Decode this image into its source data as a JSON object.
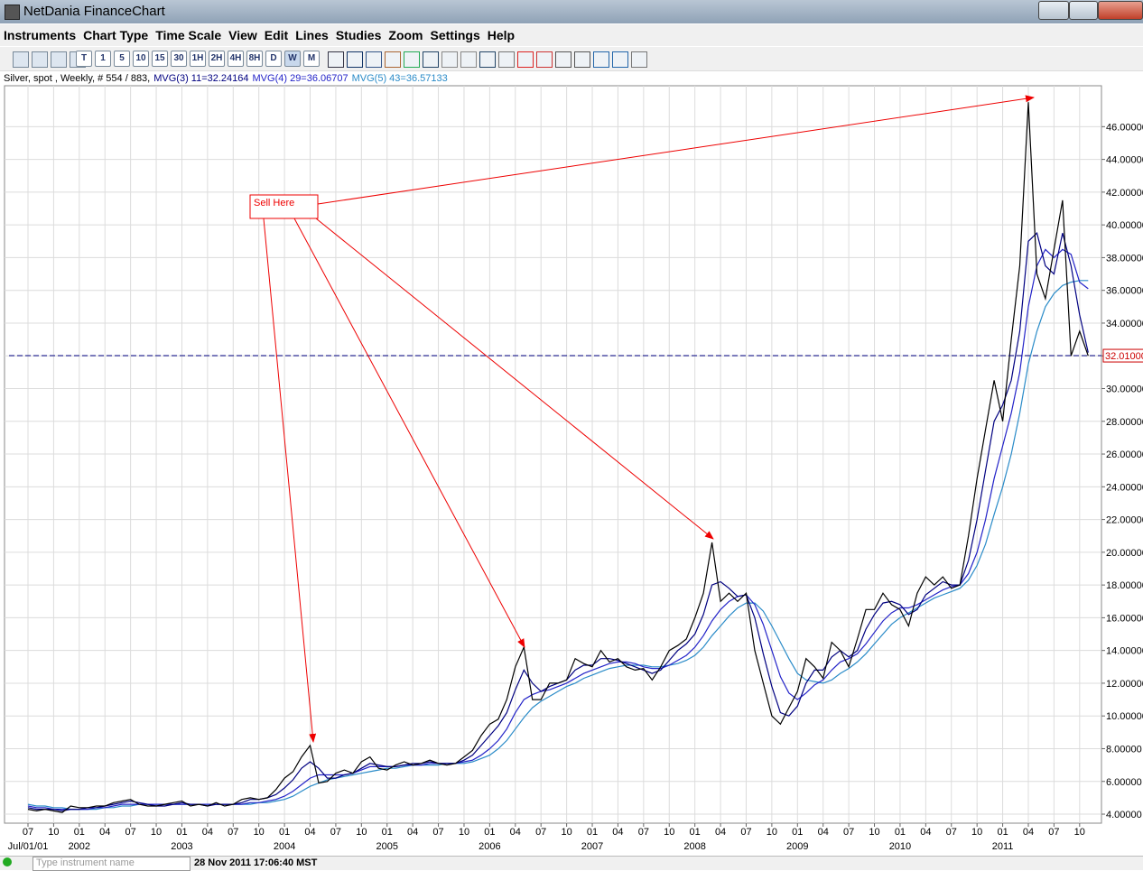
{
  "window": {
    "title": "NetDania FinanceChart"
  },
  "menu": [
    "Instruments",
    "Chart Type",
    "Time Scale",
    "View",
    "Edit",
    "Lines",
    "Studies",
    "Zoom",
    "Settings",
    "Help"
  ],
  "toolbar": {
    "timeframes": [
      "T",
      "1",
      "5",
      "10",
      "15",
      "30",
      "1H",
      "2H",
      "4H",
      "8H",
      "D",
      "W",
      "M"
    ]
  },
  "status": {
    "search_placeholder": "Type instrument name",
    "datetime": "28 Nov 2011 17:06:40 MST"
  },
  "chart_data": {
    "type": "line",
    "x": [
      "2001-07",
      "2001-08",
      "2001-09",
      "2001-10",
      "2001-11",
      "2001-12",
      "2002-01",
      "2002-02",
      "2002-03",
      "2002-04",
      "2002-05",
      "2002-06",
      "2002-07",
      "2002-08",
      "2002-09",
      "2002-10",
      "2002-11",
      "2002-12",
      "2003-01",
      "2003-02",
      "2003-03",
      "2003-04",
      "2003-05",
      "2003-06",
      "2003-07",
      "2003-08",
      "2003-09",
      "2003-10",
      "2003-11",
      "2003-12",
      "2004-01",
      "2004-02",
      "2004-03",
      "2004-04",
      "2004-05",
      "2004-06",
      "2004-07",
      "2004-08",
      "2004-09",
      "2004-10",
      "2004-11",
      "2004-12",
      "2005-01",
      "2005-02",
      "2005-03",
      "2005-04",
      "2005-05",
      "2005-06",
      "2005-07",
      "2005-08",
      "2005-09",
      "2005-10",
      "2005-11",
      "2005-12",
      "2006-01",
      "2006-02",
      "2006-03",
      "2006-04",
      "2006-05",
      "2006-06",
      "2006-07",
      "2006-08",
      "2006-09",
      "2006-10",
      "2006-11",
      "2006-12",
      "2007-01",
      "2007-02",
      "2007-03",
      "2007-04",
      "2007-05",
      "2007-06",
      "2007-07",
      "2007-08",
      "2007-09",
      "2007-10",
      "2007-11",
      "2007-12",
      "2008-01",
      "2008-02",
      "2008-03",
      "2008-04",
      "2008-05",
      "2008-06",
      "2008-07",
      "2008-08",
      "2008-09",
      "2008-10",
      "2008-11",
      "2008-12",
      "2009-01",
      "2009-02",
      "2009-03",
      "2009-04",
      "2009-05",
      "2009-06",
      "2009-07",
      "2009-08",
      "2009-09",
      "2009-10",
      "2009-11",
      "2009-12",
      "2010-01",
      "2010-02",
      "2010-03",
      "2010-04",
      "2010-05",
      "2010-06",
      "2010-07",
      "2010-08",
      "2010-09",
      "2010-10",
      "2010-11",
      "2010-12",
      "2011-01",
      "2011-02",
      "2011-03",
      "2011-04",
      "2011-05",
      "2011-06",
      "2011-07",
      "2011-08",
      "2011-09",
      "2011-10",
      "2011-11"
    ],
    "series": [
      {
        "name": "Silver, spot , Weekly, # 554 / 883,",
        "color": "#000000",
        "values": [
          4.3,
          4.2,
          4.3,
          4.2,
          4.1,
          4.5,
          4.4,
          4.4,
          4.5,
          4.5,
          4.7,
          4.8,
          4.9,
          4.6,
          4.5,
          4.5,
          4.6,
          4.7,
          4.8,
          4.5,
          4.6,
          4.5,
          4.7,
          4.5,
          4.6,
          4.9,
          5.0,
          4.9,
          5.0,
          5.5,
          6.2,
          6.6,
          7.5,
          8.2,
          5.9,
          6.0,
          6.5,
          6.7,
          6.5,
          7.2,
          7.5,
          6.8,
          6.7,
          7.0,
          7.2,
          7.0,
          7.1,
          7.3,
          7.1,
          7.0,
          7.1,
          7.5,
          7.9,
          8.8,
          9.5,
          9.8,
          11.0,
          13.0,
          14.2,
          11.0,
          11.0,
          12.0,
          12.0,
          12.2,
          13.5,
          13.2,
          13.0,
          14.0,
          13.3,
          13.5,
          13.0,
          12.8,
          12.9,
          12.2,
          13.0,
          14.0,
          14.3,
          14.7,
          16.0,
          17.5,
          20.6,
          17.0,
          17.5,
          17.0,
          17.5,
          14.0,
          12.0,
          10.0,
          9.5,
          10.5,
          11.5,
          13.5,
          13.0,
          12.3,
          14.5,
          14.0,
          13.0,
          14.7,
          16.5,
          16.5,
          17.5,
          16.8,
          16.5,
          15.5,
          17.5,
          18.5,
          18.0,
          18.5,
          17.8,
          18.0,
          21.0,
          24.5,
          27.5,
          30.5,
          28.0,
          33.0,
          37.5,
          47.5,
          37.0,
          35.5,
          38.5,
          41.5,
          32.0,
          33.5,
          32.0
        ]
      },
      {
        "name": "MVG(3) 11=32.24164",
        "color": "#000080",
        "values": [
          4.4,
          4.3,
          4.3,
          4.3,
          4.2,
          4.3,
          4.3,
          4.4,
          4.4,
          4.5,
          4.6,
          4.7,
          4.8,
          4.7,
          4.6,
          4.5,
          4.5,
          4.6,
          4.7,
          4.6,
          4.6,
          4.5,
          4.6,
          4.6,
          4.6,
          4.7,
          4.9,
          4.9,
          5.0,
          5.2,
          5.6,
          6.1,
          6.8,
          7.2,
          6.8,
          6.2,
          6.2,
          6.4,
          6.5,
          6.8,
          7.1,
          7.0,
          6.9,
          6.9,
          7.0,
          7.1,
          7.1,
          7.2,
          7.1,
          7.1,
          7.1,
          7.3,
          7.6,
          8.2,
          8.8,
          9.4,
          10.2,
          11.6,
          12.8,
          12.0,
          11.5,
          11.8,
          12.0,
          12.2,
          12.8,
          13.1,
          13.1,
          13.5,
          13.5,
          13.4,
          13.2,
          13.0,
          12.8,
          12.6,
          12.8,
          13.4,
          14.0,
          14.4,
          15.0,
          16.2,
          18.0,
          18.2,
          17.8,
          17.3,
          17.4,
          16.0,
          13.8,
          11.8,
          10.2,
          10.0,
          10.6,
          12.0,
          12.8,
          12.8,
          13.6,
          14.0,
          13.6,
          14.0,
          15.3,
          16.2,
          16.9,
          17.0,
          16.8,
          16.2,
          16.5,
          17.4,
          17.8,
          18.2,
          18.0,
          18.0,
          19.5,
          22.0,
          25.0,
          28.0,
          29.0,
          30.5,
          33.5,
          39.0,
          39.5,
          37.5,
          37.0,
          39.5,
          37.5,
          34.5,
          32.2
        ]
      },
      {
        "name": "MVG(4) 29=36.06707",
        "color": "#2323c8",
        "values": [
          4.5,
          4.4,
          4.4,
          4.3,
          4.3,
          4.3,
          4.3,
          4.3,
          4.4,
          4.4,
          4.5,
          4.6,
          4.6,
          4.6,
          4.6,
          4.6,
          4.6,
          4.6,
          4.6,
          4.6,
          4.6,
          4.6,
          4.6,
          4.6,
          4.6,
          4.6,
          4.7,
          4.7,
          4.8,
          4.9,
          5.1,
          5.4,
          5.8,
          6.2,
          6.4,
          6.4,
          6.4,
          6.4,
          6.5,
          6.7,
          6.9,
          6.9,
          6.9,
          6.9,
          7.0,
          7.0,
          7.0,
          7.1,
          7.1,
          7.1,
          7.1,
          7.2,
          7.3,
          7.6,
          8.0,
          8.5,
          9.2,
          10.2,
          11.0,
          11.3,
          11.5,
          11.6,
          11.8,
          12.0,
          12.3,
          12.6,
          12.8,
          13.0,
          13.2,
          13.3,
          13.3,
          13.2,
          13.0,
          12.9,
          12.9,
          13.1,
          13.4,
          13.7,
          14.2,
          14.9,
          15.8,
          16.5,
          17.0,
          17.3,
          17.4,
          16.8,
          15.6,
          14.0,
          12.4,
          11.4,
          11.0,
          11.4,
          11.9,
          12.2,
          12.8,
          13.3,
          13.5,
          13.8,
          14.4,
          15.1,
          15.8,
          16.3,
          16.6,
          16.6,
          16.8,
          17.1,
          17.4,
          17.7,
          17.9,
          18.0,
          18.7,
          20.0,
          22.0,
          24.5,
          26.5,
          28.5,
          31.0,
          35.0,
          37.5,
          38.5,
          38.0,
          38.5,
          38.2,
          36.5,
          36.1
        ]
      },
      {
        "name": "MVG(5) 43=36.57133",
        "color": "#2a8bc8",
        "values": [
          4.6,
          4.5,
          4.5,
          4.4,
          4.4,
          4.3,
          4.3,
          4.3,
          4.3,
          4.4,
          4.4,
          4.5,
          4.5,
          4.6,
          4.6,
          4.6,
          4.6,
          4.6,
          4.6,
          4.6,
          4.6,
          4.6,
          4.6,
          4.6,
          4.6,
          4.6,
          4.6,
          4.7,
          4.7,
          4.8,
          4.9,
          5.1,
          5.4,
          5.7,
          5.9,
          6.1,
          6.2,
          6.3,
          6.4,
          6.5,
          6.6,
          6.7,
          6.8,
          6.8,
          6.9,
          7.0,
          7.0,
          7.0,
          7.0,
          7.1,
          7.1,
          7.1,
          7.2,
          7.4,
          7.6,
          8.0,
          8.5,
          9.2,
          9.9,
          10.5,
          10.9,
          11.2,
          11.5,
          11.8,
          12.0,
          12.3,
          12.5,
          12.7,
          12.9,
          13.0,
          13.1,
          13.1,
          13.1,
          13.0,
          13.0,
          13.1,
          13.2,
          13.4,
          13.7,
          14.2,
          14.9,
          15.5,
          16.1,
          16.6,
          16.9,
          16.9,
          16.4,
          15.5,
          14.5,
          13.5,
          12.6,
          12.2,
          12.1,
          12.0,
          12.2,
          12.6,
          12.9,
          13.3,
          13.8,
          14.4,
          15.0,
          15.6,
          16.0,
          16.3,
          16.6,
          16.9,
          17.2,
          17.4,
          17.6,
          17.8,
          18.3,
          19.2,
          20.5,
          22.3,
          24.0,
          26.0,
          28.5,
          31.5,
          33.5,
          35.0,
          35.8,
          36.3,
          36.5,
          36.6,
          36.6
        ]
      }
    ],
    "ylim": [
      3.45,
      48.5
    ],
    "yticks": [
      {
        "value": 4,
        "label": "4.00000"
      },
      {
        "value": 6,
        "label": "6.00000"
      },
      {
        "value": 8,
        "label": "8.00000"
      },
      {
        "value": 10,
        "label": "10.00000"
      },
      {
        "value": 12,
        "label": "12.00000"
      },
      {
        "value": 14,
        "label": "14.00000"
      },
      {
        "value": 16,
        "label": "16.00000"
      },
      {
        "value": 18,
        "label": "18.00000"
      },
      {
        "value": 20,
        "label": "20.00000"
      },
      {
        "value": 22,
        "label": "22.00000"
      },
      {
        "value": 24,
        "label": "24.00000"
      },
      {
        "value": 26,
        "label": "26.00000"
      },
      {
        "value": 28,
        "label": "28.00000"
      },
      {
        "value": 30,
        "label": "30.00000"
      },
      {
        "value": 32,
        "label": "32.00000"
      },
      {
        "value": 34,
        "label": "34.00000"
      },
      {
        "value": 36,
        "label": "36.00000"
      },
      {
        "value": 38,
        "label": "38.00000"
      },
      {
        "value": 40,
        "label": "40.00000"
      },
      {
        "value": 42,
        "label": "42.00000"
      },
      {
        "value": 44,
        "label": "44.00000"
      },
      {
        "value": 46,
        "label": "46.00000"
      }
    ],
    "x_month_labels": [
      "07",
      "10",
      "01",
      "04",
      "07",
      "10",
      "01",
      "04",
      "07",
      "10",
      "01",
      "04",
      "07",
      "10",
      "01",
      "04",
      "07",
      "10",
      "01",
      "04",
      "07",
      "10",
      "01",
      "04",
      "07",
      "10",
      "01",
      "04",
      "07",
      "10",
      "01",
      "04",
      "07",
      "10",
      "01",
      "04",
      "07",
      "10",
      "01",
      "04",
      "07",
      "10"
    ],
    "x_year_labels": [
      "Jul/01/01",
      "2002",
      "2003",
      "2004",
      "2005",
      "2006",
      "2007",
      "2008",
      "2009",
      "2010",
      "2011"
    ],
    "annotation": "Sell Here",
    "last_price": {
      "value": 32.01,
      "label": "32.01000"
    },
    "grid": true
  }
}
